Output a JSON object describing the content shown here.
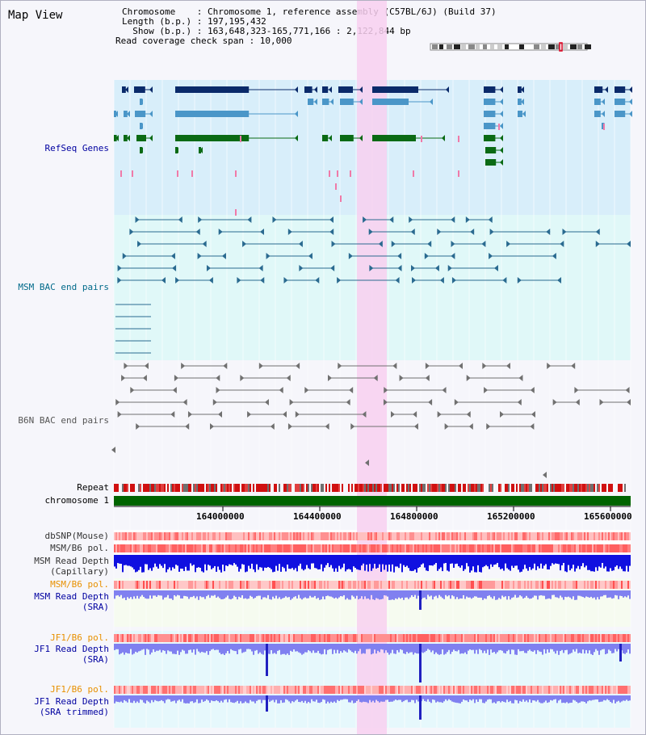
{
  "view": {
    "title": "Map View"
  },
  "info": {
    "line1": "Chromosome    : Chromosome 1, reference assembly (C57BL/6J) (Build 37)",
    "line2": "Length (b.p.) : 197,195,432",
    "line3": "  Show (b.p.) : 163,648,323-165,771,166 : 2,122,844 bp",
    "line4": "Read coverage check span : 10,000"
  },
  "tracks": {
    "refseq": "RefSeq Genes",
    "msm_bac": "MSM BAC end pairs",
    "b6n_bac": "B6N BAC end pairs",
    "repeat": "Repeat",
    "chromosome": "chromosome 1",
    "dbsnp": "dbSNP(Mouse)",
    "msm_b6_pol_1": "MSM/B6 pol.",
    "msm_depth_cap_1": "MSM Read Depth",
    "msm_depth_cap_2": "(Capillary)",
    "msm_b6_pol_2": "MSM/B6 pol.",
    "msm_depth_sra_1": "MSM Read Depth",
    "msm_depth_sra_2": "(SRA)",
    "jf1_b6_pol_1": "JF1/B6 pol.",
    "jf1_depth_sra_1": "JF1 Read Depth",
    "jf1_depth_sra_2": "(SRA)",
    "jf1_b6_pol_2": "JF1/B6 pol.",
    "jf1_depth_trim_1": "JF1 Read Depth",
    "jf1_depth_trim_2": "(SRA trimmed)"
  },
  "axis": {
    "ticks": [
      "164000000",
      "164400000",
      "164800000",
      "165200000",
      "165600000"
    ]
  },
  "colors": {
    "refseq_bg": "#d8eefa",
    "msm_bg": "#e0f8f8",
    "highlight": "#f8d0f0",
    "gene_dark": "#0a2a6a",
    "gene_mid": "#4a96c8",
    "gene_green": "#0a6a14",
    "gene_pink": "#f07aa8",
    "msm_pair": "#2a6a90",
    "b6n_pair": "#707070",
    "depth_blue": "#1010e0",
    "depth_light": "#8080f0",
    "label_blue": "#0000a0",
    "label_teal": "#006a8a",
    "label_gray": "#555555",
    "label_orange": "#e89000"
  }
}
